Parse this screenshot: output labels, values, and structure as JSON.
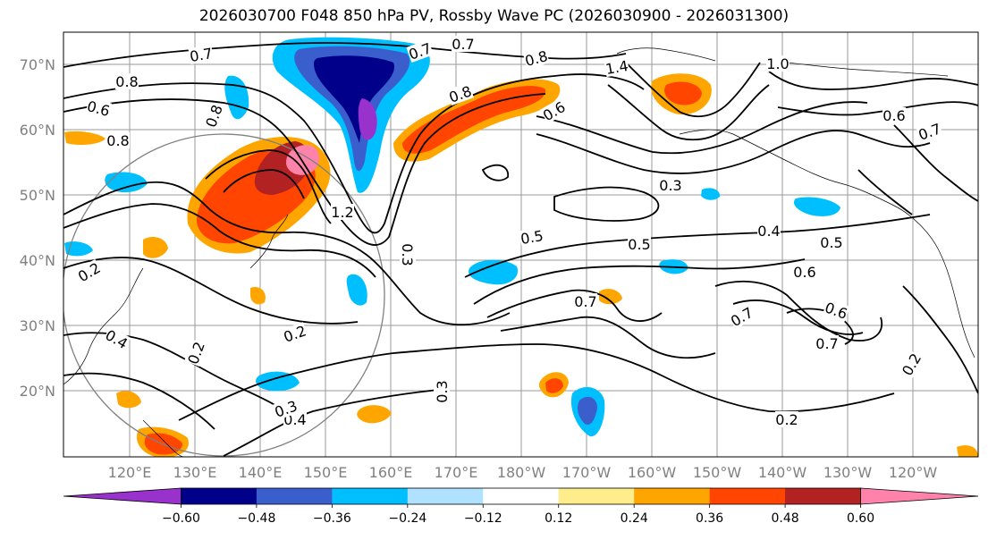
{
  "title": "2026030700 F048 850 hPa PV, Rossby Wave PC (2026030900 - 2026031300)",
  "lat_labels": [
    "70°N",
    "60°N",
    "50°N",
    "40°N",
    "30°N",
    "20°N"
  ],
  "lon_labels": [
    "120°E",
    "130°E",
    "140°E",
    "150°E",
    "160°E",
    "170°E",
    "180°W",
    "170°W",
    "160°W",
    "150°W",
    "140°W",
    "130°W",
    "120°W"
  ],
  "colorbar": {
    "colors": [
      "#9932cc",
      "#00008b",
      "#3a5fcd",
      "#00bfff",
      "#b0e2ff",
      "#ffffff",
      "#ffec8b",
      "#ffa500",
      "#ff4500",
      "#b22222",
      "#ff82ab"
    ],
    "tick_labels": [
      "−0.60",
      "−0.48",
      "−0.36",
      "−0.24",
      "−0.12",
      "0.12",
      "0.24",
      "0.36",
      "0.48",
      "0.60"
    ]
  },
  "contour_labels": [
    "0.7",
    "0.7",
    "0.7",
    "0.8",
    "0.8",
    "0.8",
    "1.4",
    "1.0",
    "0.8",
    "0.6",
    "0.6",
    "0.8",
    "0.6",
    "0.7",
    "1.2",
    "0.3",
    "0.5",
    "0.4",
    "0.5",
    "0.5",
    "0.6",
    "0.7",
    "0.7",
    "0.6",
    "0.7",
    "0.2",
    "0.2",
    "0.3",
    "0.4",
    "0.2",
    "0.2",
    "0.3",
    "0.3",
    "0.4",
    "0.2"
  ]
}
